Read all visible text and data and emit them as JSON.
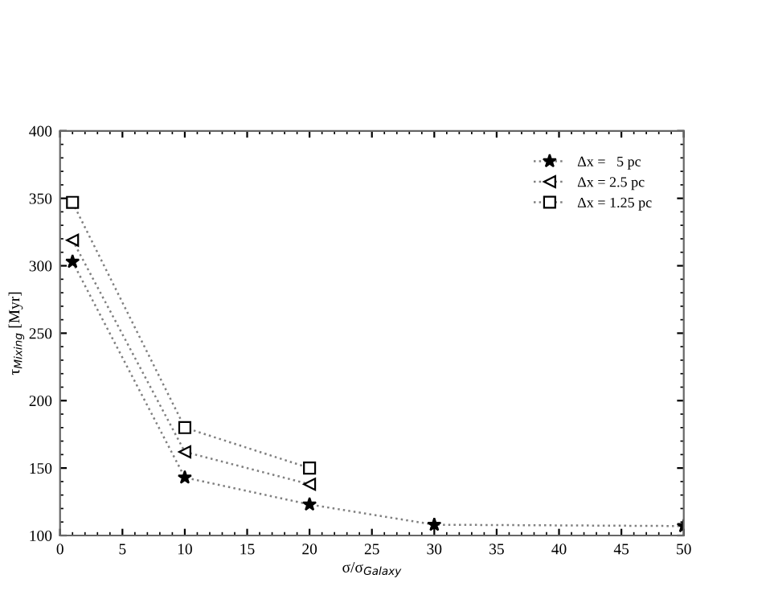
{
  "chart_data": {
    "type": "line",
    "xlabel": "σ/σ$_{Galaxy}$",
    "ylabel": "τ$_{Mixing}$ [Myr]",
    "xlim": [
      0,
      50
    ],
    "xticks": [
      0,
      5,
      10,
      15,
      20,
      25,
      30,
      35,
      40,
      45,
      50
    ],
    "ylim": [
      100,
      400
    ],
    "yticks": [
      100,
      150,
      200,
      250,
      300,
      350,
      400
    ],
    "grid": false,
    "legend": "top right",
    "line_style": "dotted",
    "series": [
      {
        "name": "Δx =   5 pc",
        "color": "#000000",
        "marker": "star",
        "x": [
          1,
          10,
          20,
          30,
          50
        ],
        "values": [
          303,
          143,
          123,
          108,
          107
        ]
      },
      {
        "name": "Δx = 2.5 pc",
        "color": "#000000",
        "marker": "triangle",
        "x": [
          1,
          10,
          20
        ],
        "values": [
          319,
          162,
          138
        ]
      },
      {
        "name": "Δx = 1.25 pc",
        "color": "#000000",
        "marker": "square",
        "x": [
          1,
          10,
          20
        ],
        "values": [
          347,
          180,
          150
        ]
      }
    ]
  }
}
